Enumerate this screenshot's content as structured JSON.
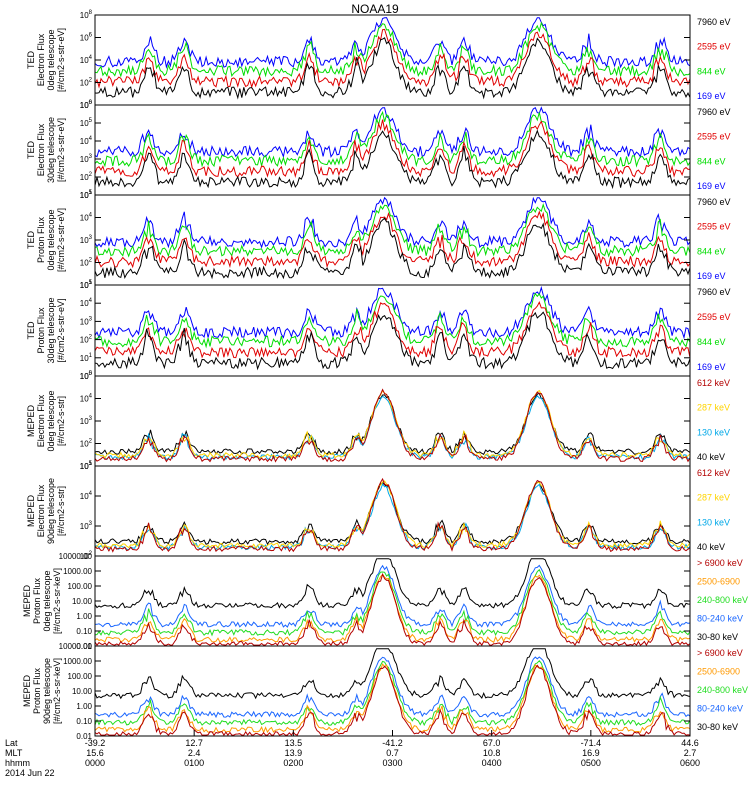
{
  "title": "NOAA19",
  "colors": {
    "black": "#000000",
    "red": "#e00000",
    "green": "#00dd00",
    "blue": "#0000ff",
    "darkred": "#b30000",
    "yellow": "#ffd400",
    "cyan": "#00a8e8",
    "orange": "#ff9900",
    "green2": "#22dd22",
    "blue2": "#1a66ff"
  },
  "panels": [
    {
      "id": "ted-electron-0deg",
      "ylabel": [
        "TED",
        "Electron Flux",
        "0deg telescope",
        "[#/cm2-s-str-eV]"
      ],
      "yticks": [
        {
          "b": "10",
          "e": "0"
        },
        {
          "b": "10",
          "e": "2"
        },
        {
          "b": "10",
          "e": "4"
        },
        {
          "b": "10",
          "e": "6"
        },
        {
          "b": "10",
          "e": "8"
        }
      ],
      "legend": [
        {
          "label": "7960 eV",
          "color": "#000000"
        },
        {
          "label": "2595 eV",
          "color": "#e00000"
        },
        {
          "label": "844 eV",
          "color": "#00dd00"
        },
        {
          "label": "169 eV",
          "color": "#0000ff"
        }
      ]
    },
    {
      "id": "ted-electron-30deg",
      "ylabel": [
        "TED",
        "Electron Flux",
        "30deg telescope",
        "[#/cm2-s-str-eV]"
      ],
      "yticks": [
        {
          "b": "10",
          "e": "1"
        },
        {
          "b": "10",
          "e": "2"
        },
        {
          "b": "10",
          "e": "3"
        },
        {
          "b": "10",
          "e": "4"
        },
        {
          "b": "10",
          "e": "5"
        },
        {
          "b": "10",
          "e": "6"
        }
      ],
      "legend": [
        {
          "label": "7960 eV",
          "color": "#000000"
        },
        {
          "label": "2595 eV",
          "color": "#e00000"
        },
        {
          "label": "844 eV",
          "color": "#00dd00"
        },
        {
          "label": "169 eV",
          "color": "#0000ff"
        }
      ]
    },
    {
      "id": "ted-proton-0deg",
      "ylabel": [
        "TED",
        "Proton Flux",
        "0deg telescope",
        "[#/cm2-s-str-eV]"
      ],
      "yticks": [
        {
          "b": "10",
          "e": "1"
        },
        {
          "b": "10",
          "e": "2"
        },
        {
          "b": "10",
          "e": "3"
        },
        {
          "b": "10",
          "e": "4"
        },
        {
          "b": "10",
          "e": "5"
        }
      ],
      "legend": [
        {
          "label": "7960 eV",
          "color": "#000000"
        },
        {
          "label": "2595 eV",
          "color": "#e00000"
        },
        {
          "label": "844 eV",
          "color": "#00dd00"
        },
        {
          "label": "169 eV",
          "color": "#0000ff"
        }
      ]
    },
    {
      "id": "ted-proton-30deg",
      "ylabel": [
        "TED",
        "Proton Flux",
        "30deg telescope",
        "[#/cm2-s-str-eV]"
      ],
      "yticks": [
        {
          "b": "10",
          "e": "0"
        },
        {
          "b": "10",
          "e": "1"
        },
        {
          "b": "10",
          "e": "2"
        },
        {
          "b": "10",
          "e": "3"
        },
        {
          "b": "10",
          "e": "4"
        },
        {
          "b": "10",
          "e": "5"
        }
      ],
      "legend": [
        {
          "label": "7960 eV",
          "color": "#000000"
        },
        {
          "label": "2595 eV",
          "color": "#e00000"
        },
        {
          "label": "844 eV",
          "color": "#00dd00"
        },
        {
          "label": "169 eV",
          "color": "#0000ff"
        }
      ]
    },
    {
      "id": "meped-electron-0deg",
      "ylabel": [
        "MEPED",
        "Electron Flux",
        "0deg telescope",
        "[#/cm2-s-str]"
      ],
      "yticks": [
        {
          "b": "10",
          "e": "1"
        },
        {
          "b": "10",
          "e": "2"
        },
        {
          "b": "10",
          "e": "3"
        },
        {
          "b": "10",
          "e": "4"
        },
        {
          "b": "10",
          "e": "5"
        }
      ],
      "legend": [
        {
          "label": "612 keV",
          "color": "#b30000"
        },
        {
          "label": "287 keV",
          "color": "#ffd400"
        },
        {
          "label": "130 keV",
          "color": "#00a8e8"
        },
        {
          "label": "40 keV",
          "color": "#000000"
        }
      ]
    },
    {
      "id": "meped-electron-90deg",
      "ylabel": [
        "MEPED",
        "Electron Flux",
        "90deg telescope",
        "[#/cm2-s-str]"
      ],
      "yticks": [
        {
          "b": "10",
          "e": "2"
        },
        {
          "b": "10",
          "e": "3"
        },
        {
          "b": "10",
          "e": "4"
        },
        {
          "b": "10",
          "e": "5"
        }
      ],
      "legend": [
        {
          "label": "612 keV",
          "color": "#b30000"
        },
        {
          "label": "287 keV",
          "color": "#ffd400"
        },
        {
          "label": "130 keV",
          "color": "#00a8e8"
        },
        {
          "label": "40 keV",
          "color": "#000000"
        }
      ]
    },
    {
      "id": "meped-proton-0deg",
      "ylabel": [
        "MEPED",
        "Proton Flux",
        "0deg telescope",
        "[#/cm2-s-sr-keV]"
      ],
      "yticks": [
        {
          "t": "0.01"
        },
        {
          "t": "0.10"
        },
        {
          "t": "1.00"
        },
        {
          "t": "10.00"
        },
        {
          "t": "100.00"
        },
        {
          "t": "1000.00"
        },
        {
          "t": "10000.00"
        }
      ],
      "legend": [
        {
          "label": "> 6900 keV",
          "color": "#b30000"
        },
        {
          "label": "2500-6900",
          "color": "#ff9900"
        },
        {
          "label": "240-800 keV",
          "color": "#22dd22"
        },
        {
          "label": "80-240 keV",
          "color": "#1a66ff"
        },
        {
          "label": "30-80 keV",
          "color": "#000000"
        }
      ]
    },
    {
      "id": "meped-proton-90deg",
      "ylabel": [
        "MEPED",
        "Proton Flux",
        "90deg telescope",
        "[#/cm2-s-sr-keV]"
      ],
      "yticks": [
        {
          "t": "0.01"
        },
        {
          "t": "0.10"
        },
        {
          "t": "1.00"
        },
        {
          "t": "10.00"
        },
        {
          "t": "100.00"
        },
        {
          "t": "1000.00"
        },
        {
          "t": "10000.00"
        }
      ],
      "legend": [
        {
          "label": "> 6900 keV",
          "color": "#b30000"
        },
        {
          "label": "2500-6900",
          "color": "#ff9900"
        },
        {
          "label": "240-800 keV",
          "color": "#22dd22"
        },
        {
          "label": "80-240 keV",
          "color": "#1a66ff"
        },
        {
          "label": "30-80 keV",
          "color": "#000000"
        }
      ]
    }
  ],
  "xaxis": {
    "row_labels": [
      "Lat",
      "MLT",
      "hhmm",
      "2014 Jun 22"
    ],
    "ticks": [
      {
        "lat": "-39.2",
        "mlt": "15.6",
        "hhmm": "0000"
      },
      {
        "lat": "12.7",
        "mlt": "2.4",
        "hhmm": "0100"
      },
      {
        "lat": "13.5",
        "mlt": "13.9",
        "hhmm": "0200"
      },
      {
        "lat": "-41.2",
        "mlt": "0.7",
        "hhmm": "0300"
      },
      {
        "lat": "67.0",
        "mlt": "10.8",
        "hhmm": "0400"
      },
      {
        "lat": "-71.4",
        "mlt": "16.9",
        "hhmm": "0500"
      },
      {
        "lat": "44.6",
        "mlt": "2.7",
        "hhmm": "0600"
      }
    ]
  },
  "chart_data": {
    "type": "line",
    "title": "NOAA19",
    "x_range_hhmm": [
      "0000",
      "0600"
    ],
    "x_ticks": [
      "0000",
      "0100",
      "0200",
      "0300",
      "0400",
      "0500",
      "0600"
    ],
    "x_ticks_lat": [
      "-39.2",
      "12.7",
      "13.5",
      "-41.2",
      "67.0",
      "-71.4",
      "44.6"
    ],
    "x_ticks_mlt": [
      "15.6",
      "2.4",
      "13.9",
      "0.7",
      "10.8",
      "16.9",
      "2.7"
    ],
    "date": "2014 Jun 22",
    "radiation_belt_passes_hhmm": [
      "0254",
      "0430"
    ],
    "panels": [
      {
        "ylabel": "TED Electron Flux 0deg telescope [#/cm2-s-str-eV]",
        "yscale": "log",
        "ylim": [
          1,
          100000000
        ],
        "series": [
          {
            "name": "7960 eV"
          },
          {
            "name": "2595 eV"
          },
          {
            "name": "844 eV"
          },
          {
            "name": "169 eV"
          }
        ]
      },
      {
        "ylabel": "TED Electron Flux 30deg telescope [#/cm2-s-str-eV]",
        "yscale": "log",
        "ylim": [
          10,
          1000000
        ],
        "series": [
          {
            "name": "7960 eV"
          },
          {
            "name": "2595 eV"
          },
          {
            "name": "844 eV"
          },
          {
            "name": "169 eV"
          }
        ]
      },
      {
        "ylabel": "TED Proton Flux 0deg telescope [#/cm2-s-str-eV]",
        "yscale": "log",
        "ylim": [
          10,
          100000
        ],
        "series": [
          {
            "name": "7960 eV"
          },
          {
            "name": "2595 eV"
          },
          {
            "name": "844 eV"
          },
          {
            "name": "169 eV"
          }
        ]
      },
      {
        "ylabel": "TED Proton Flux 30deg telescope [#/cm2-s-str-eV]",
        "yscale": "log",
        "ylim": [
          1,
          100000
        ],
        "series": [
          {
            "name": "7960 eV"
          },
          {
            "name": "2595 eV"
          },
          {
            "name": "844 eV"
          },
          {
            "name": "169 eV"
          }
        ]
      },
      {
        "ylabel": "MEPED Electron Flux 0deg telescope [#/cm2-s-str]",
        "yscale": "log",
        "ylim": [
          10,
          100000
        ],
        "series": [
          {
            "name": "612 keV"
          },
          {
            "name": "287 keV"
          },
          {
            "name": "130 keV"
          },
          {
            "name": "40 keV"
          }
        ]
      },
      {
        "ylabel": "MEPED Electron Flux 90deg telescope [#/cm2-s-str]",
        "yscale": "log",
        "ylim": [
          100,
          100000
        ],
        "series": [
          {
            "name": "612 keV"
          },
          {
            "name": "287 keV"
          },
          {
            "name": "130 keV"
          },
          {
            "name": "40 keV"
          }
        ]
      },
      {
        "ylabel": "MEPED Proton Flux 0deg telescope [#/cm2-s-sr-keV]",
        "yscale": "log",
        "ylim": [
          0.01,
          10000
        ],
        "series": [
          {
            "name": "> 6900 keV"
          },
          {
            "name": "2500-6900"
          },
          {
            "name": "240-800 keV"
          },
          {
            "name": "80-240 keV"
          },
          {
            "name": "30-80 keV"
          }
        ]
      },
      {
        "ylabel": "MEPED Proton Flux 90deg telescope [#/cm2-s-sr-keV]",
        "yscale": "log",
        "ylim": [
          0.01,
          10000
        ],
        "series": [
          {
            "name": "> 6900 keV"
          },
          {
            "name": "2500-6900"
          },
          {
            "name": "240-800 keV"
          },
          {
            "name": "80-240 keV"
          },
          {
            "name": "30-80 keV"
          }
        ]
      }
    ]
  }
}
